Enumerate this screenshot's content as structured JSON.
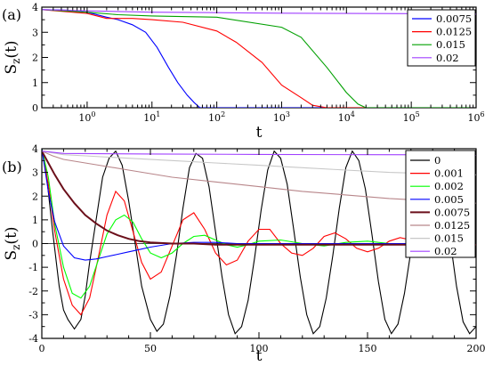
{
  "chart_data": [
    {
      "panel_label": "(a)",
      "type": "line",
      "xscale": "log",
      "xlim": [
        0.2,
        1000000
      ],
      "ylim": [
        0,
        4
      ],
      "xlabel": "t",
      "ylabel": "S",
      "ylabel_subscript": "z",
      "ylabel_suffix": "(t)",
      "xticks": [
        {
          "value": 1,
          "base": "10",
          "exp": "0"
        },
        {
          "value": 10,
          "base": "10",
          "exp": "1"
        },
        {
          "value": 100,
          "base": "10",
          "exp": "2"
        },
        {
          "value": 1000,
          "base": "10",
          "exp": "3"
        },
        {
          "value": 10000,
          "base": "10",
          "exp": "4"
        },
        {
          "value": 100000,
          "base": "10",
          "exp": "5"
        },
        {
          "value": 1000000,
          "base": "10",
          "exp": "6"
        }
      ],
      "yticks": [
        "0",
        "1",
        "2",
        "3",
        "4"
      ],
      "legend_position": "top-right",
      "series": [
        {
          "name": "0.0075",
          "color": "#0000ff",
          "x": [
            0.2,
            0.5,
            1,
            2,
            3,
            5,
            8,
            12,
            18,
            25,
            35,
            45,
            55,
            1000000
          ],
          "y": [
            3.9,
            3.88,
            3.8,
            3.6,
            3.5,
            3.3,
            3.0,
            2.4,
            1.6,
            1.0,
            0.5,
            0.2,
            0.0,
            0.0
          ]
        },
        {
          "name": "0.0125",
          "color": "#ff0000",
          "x": [
            0.2,
            1,
            2,
            5,
            10,
            30,
            100,
            200,
            500,
            1000,
            2000,
            3000,
            5000,
            1000000
          ],
          "y": [
            3.9,
            3.75,
            3.55,
            3.55,
            3.5,
            3.4,
            3.05,
            2.6,
            1.8,
            0.9,
            0.4,
            0.1,
            0.0,
            0.0
          ]
        },
        {
          "name": "0.015",
          "color": "#00a000",
          "x": [
            0.2,
            1,
            3,
            10,
            100,
            1000,
            2000,
            5000,
            10000,
            15000,
            20000,
            1000000
          ],
          "y": [
            3.9,
            3.8,
            3.7,
            3.65,
            3.6,
            3.2,
            2.8,
            1.6,
            0.6,
            0.15,
            0.0,
            0.0
          ]
        },
        {
          "name": "0.02",
          "color": "#a040ff",
          "x": [
            0.2,
            1,
            10,
            100,
            1000,
            10000,
            100000,
            1000000
          ],
          "y": [
            3.9,
            3.85,
            3.8,
            3.78,
            3.76,
            3.75,
            3.74,
            3.72
          ]
        }
      ]
    },
    {
      "panel_label": "(b)",
      "type": "line",
      "xlim": [
        0,
        200
      ],
      "ylim": [
        -4,
        4
      ],
      "xlabel": "t",
      "ylabel": "S",
      "ylabel_subscript": "z",
      "ylabel_suffix": "(t)",
      "xticks": [
        "0",
        "50",
        "100",
        "150",
        "200"
      ],
      "yticks": [
        "-4",
        "-3",
        "-2",
        "-1",
        "0",
        "1",
        "2",
        "3",
        "4"
      ],
      "legend_position": "top-right",
      "series": [
        {
          "name": "0",
          "color": "#000000",
          "x": [
            0,
            2,
            5,
            8,
            10,
            12,
            15,
            18,
            20,
            22,
            25,
            28,
            31,
            34,
            37,
            40,
            43,
            46,
            50,
            53,
            56,
            59,
            62,
            65,
            68,
            71,
            74,
            77,
            80,
            83,
            86,
            89,
            92,
            95,
            98,
            101,
            104,
            107,
            110,
            113,
            116,
            119,
            122,
            125,
            128,
            131,
            134,
            137,
            140,
            143,
            146,
            149,
            152,
            155,
            158,
            161,
            164,
            167,
            170,
            173,
            176,
            179,
            182,
            185,
            188,
            191,
            194,
            197,
            200
          ],
          "y": [
            4,
            3.0,
            0.5,
            -1.8,
            -2.8,
            -3.2,
            -3.6,
            -3.2,
            -2.2,
            -0.8,
            1.0,
            2.8,
            3.6,
            3.9,
            3.3,
            1.8,
            0.0,
            -1.8,
            -3.2,
            -3.7,
            -3.4,
            -2.2,
            -0.5,
            1.5,
            3.2,
            3.8,
            3.6,
            2.4,
            0.5,
            -1.4,
            -3.0,
            -3.8,
            -3.5,
            -2.4,
            -0.6,
            1.4,
            3.1,
            3.9,
            3.6,
            2.5,
            0.6,
            -1.4,
            -3.0,
            -3.8,
            -3.5,
            -2.3,
            -0.5,
            1.5,
            3.2,
            3.9,
            3.5,
            2.3,
            0.4,
            -1.6,
            -3.2,
            -3.8,
            -3.4,
            -2.1,
            -0.3,
            1.7,
            3.3,
            3.9,
            3.4,
            2.1,
            0.2,
            -1.8,
            -3.3,
            -3.8,
            -3.5
          ]
        },
        {
          "name": "0.001",
          "color": "#ff0000",
          "x": [
            0,
            3,
            6,
            10,
            14,
            18,
            22,
            26,
            30,
            34,
            38,
            42,
            46,
            50,
            55,
            60,
            65,
            70,
            75,
            80,
            85,
            90,
            95,
            100,
            105,
            110,
            115,
            120,
            125,
            130,
            135,
            140,
            145,
            150,
            155,
            160,
            165,
            170,
            175,
            180,
            185,
            190,
            195,
            200
          ],
          "y": [
            4,
            2.5,
            0.5,
            -1.5,
            -2.6,
            -3.0,
            -2.3,
            -0.6,
            1.2,
            2.2,
            1.8,
            0.5,
            -0.8,
            -1.5,
            -1.2,
            -0.1,
            1.0,
            1.3,
            0.6,
            -0.4,
            -0.9,
            -0.7,
            0.1,
            0.6,
            0.6,
            0.0,
            -0.4,
            -0.5,
            -0.2,
            0.3,
            0.45,
            0.2,
            -0.2,
            -0.35,
            -0.2,
            0.1,
            0.25,
            0.15,
            -0.05,
            -0.15,
            -0.1,
            0.0,
            0.05,
            0.0
          ]
        },
        {
          "name": "0.002",
          "color": "#00ff00",
          "x": [
            0,
            3,
            6,
            10,
            14,
            18,
            22,
            26,
            30,
            34,
            38,
            42,
            46,
            50,
            55,
            60,
            65,
            70,
            75,
            80,
            85,
            90,
            95,
            100,
            110,
            120,
            130,
            140,
            150,
            160,
            170,
            180,
            190,
            200
          ],
          "y": [
            4,
            2.8,
            0.8,
            -1.0,
            -2.1,
            -2.3,
            -1.8,
            -0.7,
            0.4,
            1.0,
            1.2,
            0.9,
            0.2,
            -0.4,
            -0.6,
            -0.4,
            0.0,
            0.3,
            0.35,
            0.15,
            -0.05,
            -0.15,
            -0.05,
            0.1,
            0.15,
            0.0,
            -0.1,
            0.05,
            0.1,
            0.0,
            -0.05,
            0.0,
            0.0,
            0.0
          ]
        },
        {
          "name": "0.005",
          "color": "#0000ff",
          "x": [
            0,
            3,
            6,
            10,
            15,
            20,
            25,
            30,
            35,
            40,
            45,
            50,
            60,
            70,
            80,
            90,
            100,
            120,
            140,
            160,
            180,
            200
          ],
          "y": [
            4,
            2.2,
            0.9,
            -0.1,
            -0.6,
            -0.7,
            -0.65,
            -0.55,
            -0.45,
            -0.35,
            -0.25,
            -0.15,
            0.0,
            0.05,
            0.05,
            0.0,
            0.0,
            0.0,
            0.0,
            0.0,
            0.0,
            0.0
          ]
        },
        {
          "name": "0.0075",
          "color": "#6b0f1a",
          "x": [
            0,
            3,
            6,
            10,
            15,
            20,
            25,
            30,
            35,
            40,
            45,
            50,
            60,
            70,
            80,
            90,
            100,
            120,
            140,
            160,
            180,
            200
          ],
          "y": [
            3.9,
            3.4,
            2.9,
            2.3,
            1.7,
            1.2,
            0.85,
            0.55,
            0.35,
            0.2,
            0.1,
            0.05,
            0.0,
            0.0,
            -0.05,
            -0.05,
            -0.05,
            -0.05,
            -0.05,
            -0.05,
            -0.05,
            -0.05
          ]
        },
        {
          "name": "0.0125",
          "color": "#b8868a",
          "x": [
            0,
            5,
            10,
            20,
            30,
            40,
            50,
            60,
            80,
            100,
            120,
            140,
            160,
            180,
            200
          ],
          "y": [
            3.9,
            3.7,
            3.55,
            3.4,
            3.25,
            3.1,
            2.95,
            2.8,
            2.6,
            2.4,
            2.2,
            2.05,
            1.9,
            1.8,
            1.7
          ]
        },
        {
          "name": "0.015",
          "color": "#c8c8c8",
          "x": [
            0,
            10,
            20,
            40,
            60,
            80,
            100,
            120,
            140,
            160,
            180,
            200
          ],
          "y": [
            3.9,
            3.75,
            3.7,
            3.6,
            3.5,
            3.4,
            3.3,
            3.2,
            3.1,
            3.0,
            2.95,
            2.9
          ]
        },
        {
          "name": "0.02",
          "color": "#a040ff",
          "x": [
            0,
            10,
            50,
            100,
            150,
            200
          ],
          "y": [
            3.9,
            3.8,
            3.78,
            3.76,
            3.75,
            3.74
          ]
        }
      ]
    }
  ]
}
